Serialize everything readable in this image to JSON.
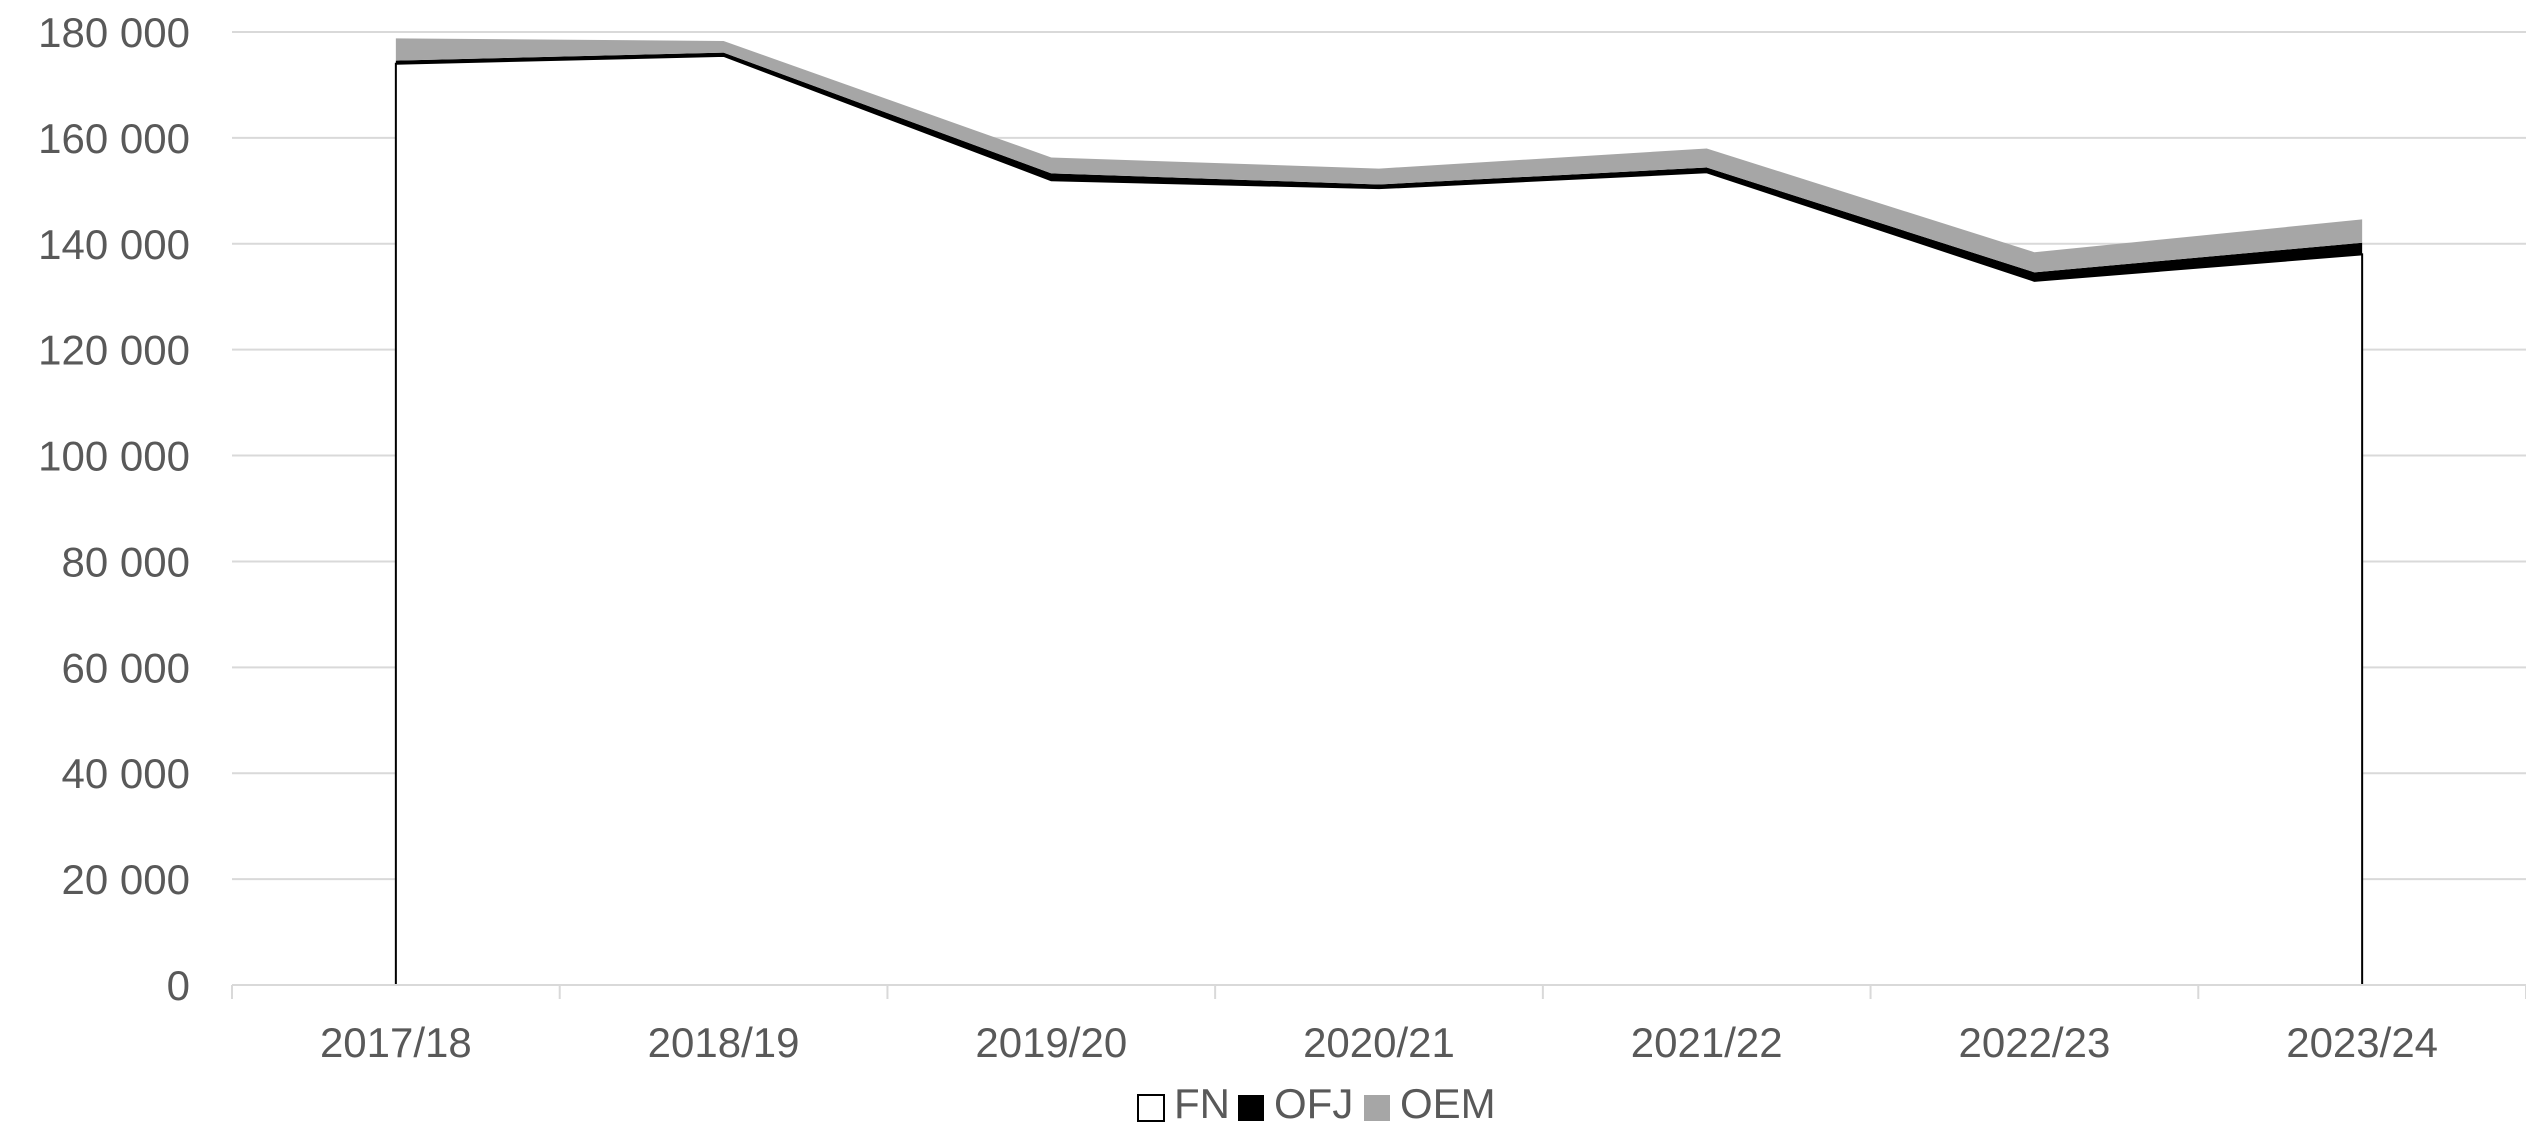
{
  "chart_data": {
    "type": "area",
    "stacked": true,
    "categories": [
      "2017/18",
      "2018/19",
      "2019/20",
      "2020/21",
      "2021/22",
      "2022/23",
      "2023/24"
    ],
    "series": [
      {
        "name": "FN",
        "values": [
          174000,
          175500,
          152000,
          150500,
          153500,
          133000,
          138000
        ],
        "color": "#ffffff",
        "stroke": "#000000"
      },
      {
        "name": "OFJ",
        "values": [
          600,
          600,
          1300,
          700,
          900,
          1600,
          2200
        ],
        "color": "#000000"
      },
      {
        "name": "OEM",
        "values": [
          4200,
          2200,
          3000,
          3000,
          3600,
          3800,
          4400
        ],
        "color": "#a6a6a6"
      }
    ],
    "ylim": [
      0,
      180000
    ],
    "yticks": [
      0,
      20000,
      40000,
      60000,
      80000,
      100000,
      120000,
      140000,
      160000,
      180000
    ],
    "ytick_labels": [
      "0",
      "20 000",
      "40 000",
      "60 000",
      "80 000",
      "100 000",
      "120 000",
      "140 000",
      "160 000",
      "180 000"
    ],
    "grid": true,
    "legend_position": "bottom",
    "title": "",
    "xlabel": "",
    "ylabel": ""
  }
}
